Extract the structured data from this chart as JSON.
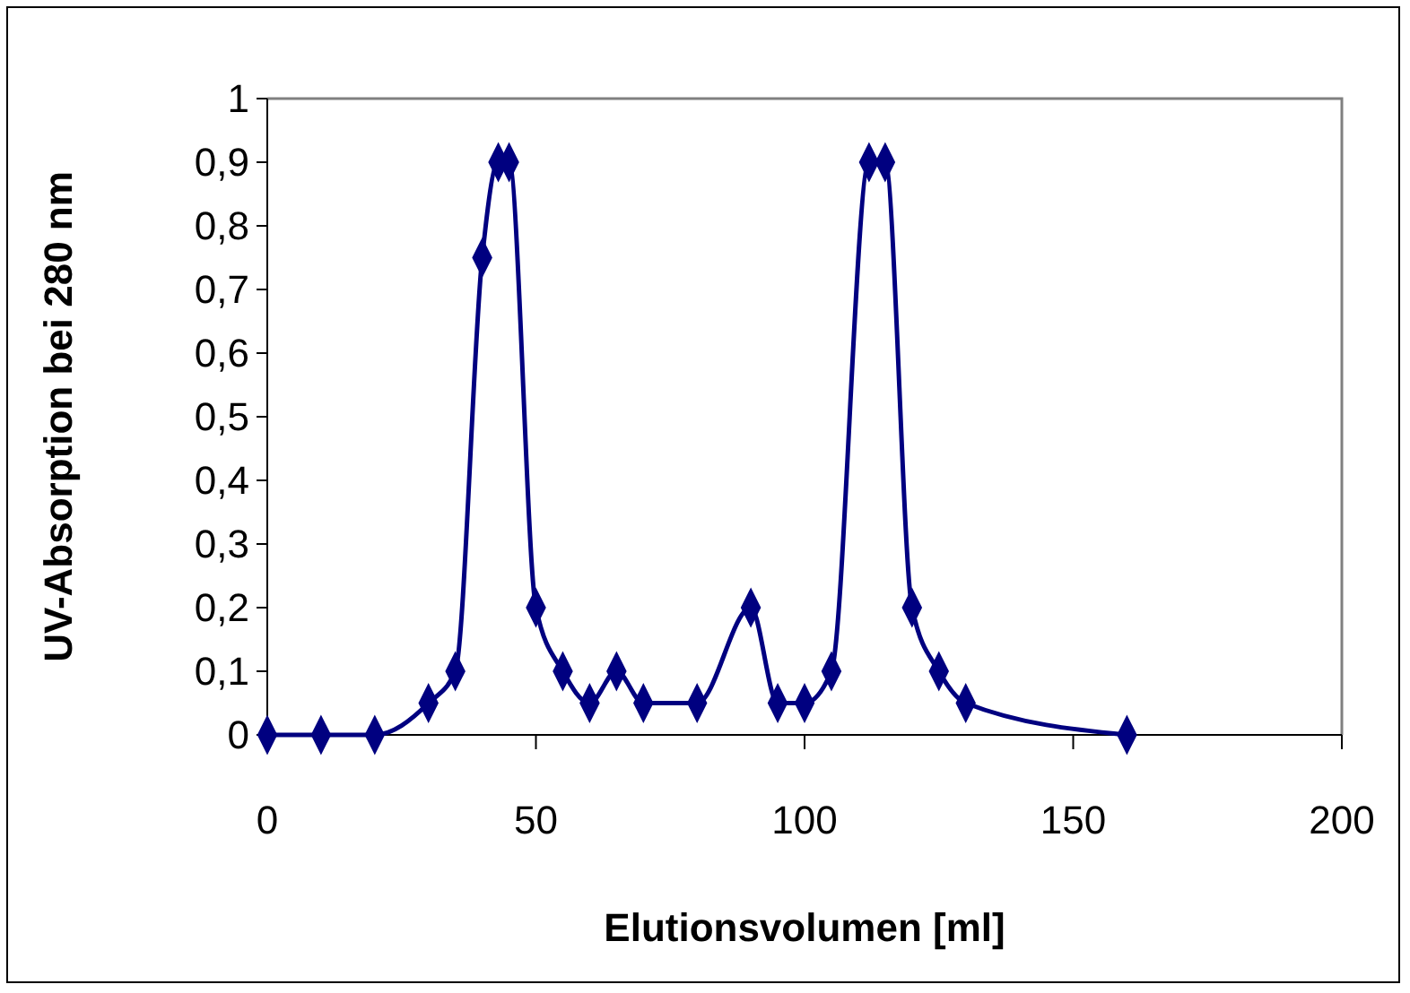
{
  "chart_data": {
    "type": "line",
    "xlabel": "Elutionsvolumen [ml]",
    "ylabel": "UV-Absorption bei 280 nm",
    "x": [
      0,
      10,
      20,
      30,
      35,
      40,
      43,
      45,
      50,
      55,
      60,
      65,
      70,
      80,
      90,
      95,
      100,
      105,
      112,
      115,
      120,
      125,
      130,
      160
    ],
    "series": [
      {
        "color": "#000080",
        "values": [
          0,
          0,
          0,
          0.05,
          0.1,
          0.75,
          0.9,
          0.9,
          0.2,
          0.1,
          0.05,
          0.1,
          0.05,
          0.05,
          0.2,
          0.05,
          0.05,
          0.1,
          0.9,
          0.9,
          0.2,
          0.1,
          0.05,
          0
        ]
      }
    ],
    "xlim": [
      0,
      200
    ],
    "xticks": [
      0,
      50,
      100,
      150,
      200
    ],
    "ylim": [
      0,
      1
    ],
    "yticks": [
      0,
      {
        "value": 0.1,
        "label": "0,1"
      },
      {
        "value": 0.2,
        "label": "0,2"
      },
      {
        "value": 0.3,
        "label": "0,3"
      },
      {
        "value": 0.4,
        "label": "0,4"
      },
      {
        "value": 0.5,
        "label": "0,5"
      },
      {
        "value": 0.6,
        "label": "0,6"
      },
      {
        "value": 0.7,
        "label": "0,7"
      },
      {
        "value": 0.8,
        "label": "0,8"
      },
      {
        "value": 0.9,
        "label": "0,9"
      },
      1
    ],
    "marker": "diamond",
    "grid": false
  }
}
